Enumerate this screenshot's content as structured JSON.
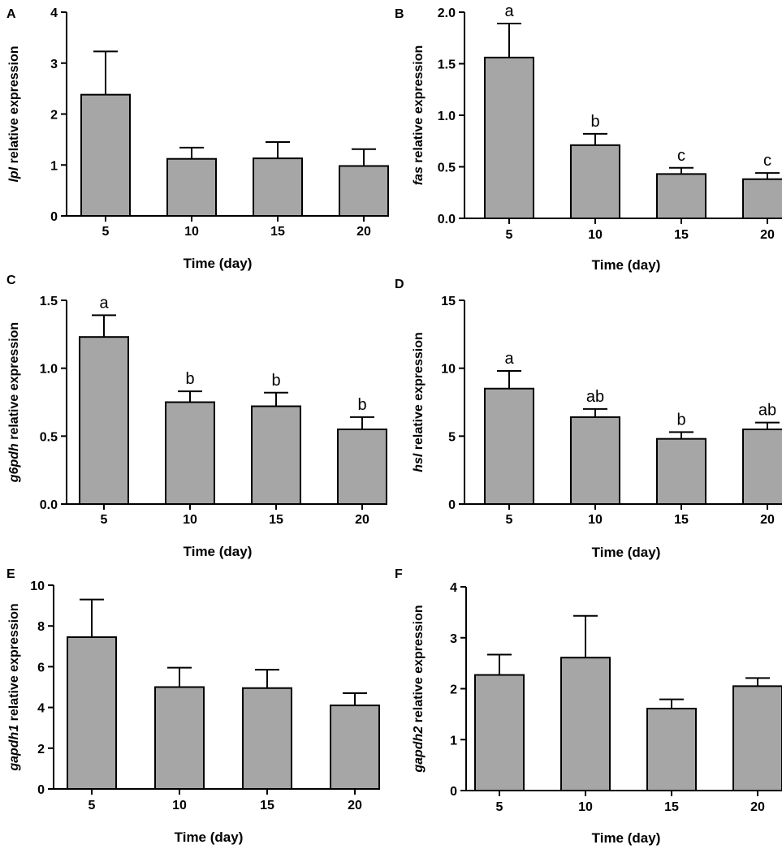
{
  "chart_data": [
    {
      "type": "bar",
      "panel": "A",
      "gene": "lpl",
      "ylabel_suffix": " relative expression",
      "xlabel": "Time (day)",
      "categories": [
        "5",
        "10",
        "15",
        "20"
      ],
      "values": [
        2.38,
        1.12,
        1.13,
        0.98
      ],
      "errors": [
        0.85,
        0.22,
        0.32,
        0.33
      ],
      "sig": [
        "",
        "",
        "",
        ""
      ],
      "ylim": [
        0,
        4
      ],
      "yticks": [
        0,
        1,
        2,
        3,
        4
      ],
      "ytick_labels": [
        "0",
        "1",
        "2",
        "3",
        "4"
      ]
    },
    {
      "type": "bar",
      "panel": "B",
      "gene": "fas",
      "ylabel_suffix": " relative expression",
      "xlabel": "Time (day)",
      "categories": [
        "5",
        "10",
        "15",
        "20"
      ],
      "values": [
        1.56,
        0.71,
        0.43,
        0.38
      ],
      "errors": [
        0.33,
        0.11,
        0.06,
        0.06
      ],
      "sig": [
        "a",
        "b",
        "c",
        "c"
      ],
      "ylim": [
        0,
        2
      ],
      "yticks": [
        0,
        0.5,
        1,
        1.5,
        2
      ],
      "ytick_labels": [
        "0.0",
        "0.5",
        "1.0",
        "1.5",
        "2.0"
      ]
    },
    {
      "type": "bar",
      "panel": "C",
      "gene": "g6pdh",
      "ylabel_suffix": " relative expression",
      "xlabel": "Time (day)",
      "categories": [
        "5",
        "10",
        "15",
        "20"
      ],
      "values": [
        1.23,
        0.75,
        0.72,
        0.55
      ],
      "errors": [
        0.16,
        0.08,
        0.1,
        0.09
      ],
      "sig": [
        "a",
        "b",
        "b",
        "b"
      ],
      "ylim": [
        0,
        1.5
      ],
      "yticks": [
        0,
        0.5,
        1,
        1.5
      ],
      "ytick_labels": [
        "0.0",
        "0.5",
        "1.0",
        "1.5"
      ]
    },
    {
      "type": "bar",
      "panel": "D",
      "gene": "hsl",
      "ylabel_suffix": " relative expression",
      "xlabel": "Time (day)",
      "categories": [
        "5",
        "10",
        "15",
        "20"
      ],
      "values": [
        8.5,
        6.4,
        4.8,
        5.5
      ],
      "errors": [
        1.3,
        0.6,
        0.5,
        0.5
      ],
      "sig": [
        "a",
        "ab",
        "b",
        "ab"
      ],
      "ylim": [
        0,
        15
      ],
      "yticks": [
        0,
        5,
        10,
        15
      ],
      "ytick_labels": [
        "0",
        "5",
        "10",
        "15"
      ]
    },
    {
      "type": "bar",
      "panel": "E",
      "gene": "gapdh1",
      "ylabel_suffix": " relative expression",
      "xlabel": "Time (day)",
      "categories": [
        "5",
        "10",
        "15",
        "20"
      ],
      "values": [
        7.45,
        5.0,
        4.95,
        4.1
      ],
      "errors": [
        1.85,
        0.95,
        0.9,
        0.6
      ],
      "sig": [
        "",
        "",
        "",
        ""
      ],
      "ylim": [
        0,
        10
      ],
      "yticks": [
        0,
        2,
        4,
        6,
        8,
        10
      ],
      "ytick_labels": [
        "0",
        "2",
        "4",
        "6",
        "8",
        "10"
      ]
    },
    {
      "type": "bar",
      "panel": "F",
      "gene": "gapdh2",
      "ylabel_suffix": " relative expression",
      "xlabel": "Time (day)",
      "categories": [
        "5",
        "10",
        "15",
        "20"
      ],
      "values": [
        2.27,
        2.61,
        1.61,
        2.05
      ],
      "errors": [
        0.4,
        0.82,
        0.18,
        0.16
      ],
      "sig": [
        "",
        "",
        "",
        ""
      ],
      "ylim": [
        0,
        4
      ],
      "yticks": [
        0,
        1,
        2,
        3,
        4
      ],
      "ytick_labels": [
        "0",
        "1",
        "2",
        "3",
        "4"
      ]
    }
  ]
}
